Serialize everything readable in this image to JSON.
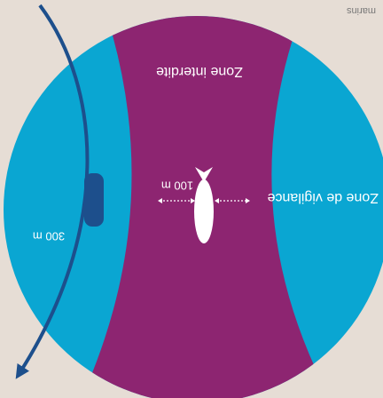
{
  "labels": {
    "forbidden": "Zone interdite",
    "vigilance": "Zone de vigilance",
    "inner_distance": "100 m",
    "outer_distance": "300 m",
    "corner": "marins"
  }
}
